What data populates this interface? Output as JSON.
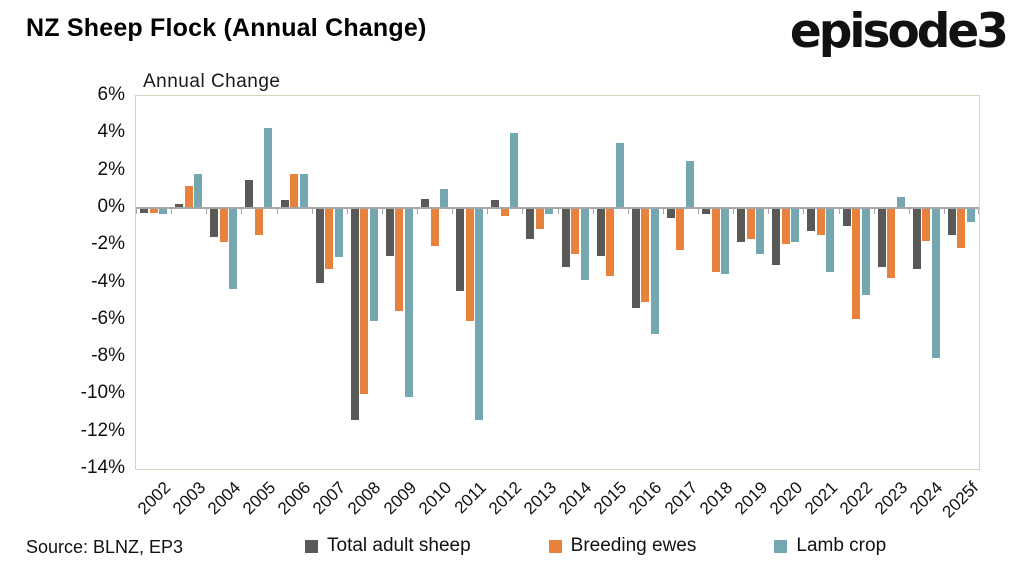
{
  "header": {
    "title": "NZ Sheep Flock (Annual Change)",
    "logo": "episode3"
  },
  "source": "Source: BLNZ, EP3",
  "chart_data": {
    "type": "bar",
    "title": "Annual Change",
    "categories": [
      "2002",
      "2003",
      "2004",
      "2005",
      "2006",
      "2007",
      "2008",
      "2009",
      "2010",
      "2011",
      "2012",
      "2013",
      "2014",
      "2015",
      "2016",
      "2017",
      "2018",
      "2019",
      "2020",
      "2021",
      "2022",
      "2023",
      "2024",
      "2025f"
    ],
    "series": [
      {
        "name": "Total adult sheep",
        "color": "#595957",
        "values": [
          -0.2,
          0.2,
          -1.5,
          1.5,
          0.4,
          -4.0,
          -11.3,
          -2.5,
          0.5,
          -4.4,
          0.4,
          -1.6,
          -3.1,
          -2.5,
          -5.3,
          -0.5,
          -0.3,
          -1.8,
          -3.0,
          -1.2,
          -0.9,
          -3.1,
          -3.2,
          -1.4
        ]
      },
      {
        "name": "Breeding ewes",
        "color": "#e8813c",
        "values": [
          -0.2,
          1.2,
          -1.8,
          -1.4,
          1.8,
          -3.2,
          -9.9,
          -5.5,
          -2.0,
          -6.0,
          -0.4,
          -1.1,
          -2.4,
          -3.6,
          -5.0,
          -2.2,
          -3.4,
          -1.6,
          -1.9,
          -1.4,
          -5.9,
          -3.7,
          -1.7,
          -2.1
        ]
      },
      {
        "name": "Lamb crop",
        "color": "#74a7b0",
        "values": [
          -0.3,
          1.8,
          -4.3,
          4.3,
          1.8,
          -2.6,
          -6.0,
          -10.1,
          1.0,
          -11.3,
          4.0,
          -0.3,
          -3.8,
          3.5,
          -6.7,
          2.5,
          -3.5,
          -2.4,
          -1.8,
          -3.4,
          -4.6,
          0.6,
          -8.0,
          -0.7
        ]
      }
    ],
    "ylim": [
      -14,
      6
    ],
    "ytick_step": 2,
    "ytick_labels": [
      "6%",
      "4%",
      "2%",
      "0%",
      "-2%",
      "-4%",
      "-6%",
      "-8%",
      "-10%",
      "-12%",
      "-14%"
    ],
    "grid": false,
    "legend_position": "bottom",
    "axis_color": "#a6a6a6",
    "plot_border_color": "#d9d3bd"
  }
}
